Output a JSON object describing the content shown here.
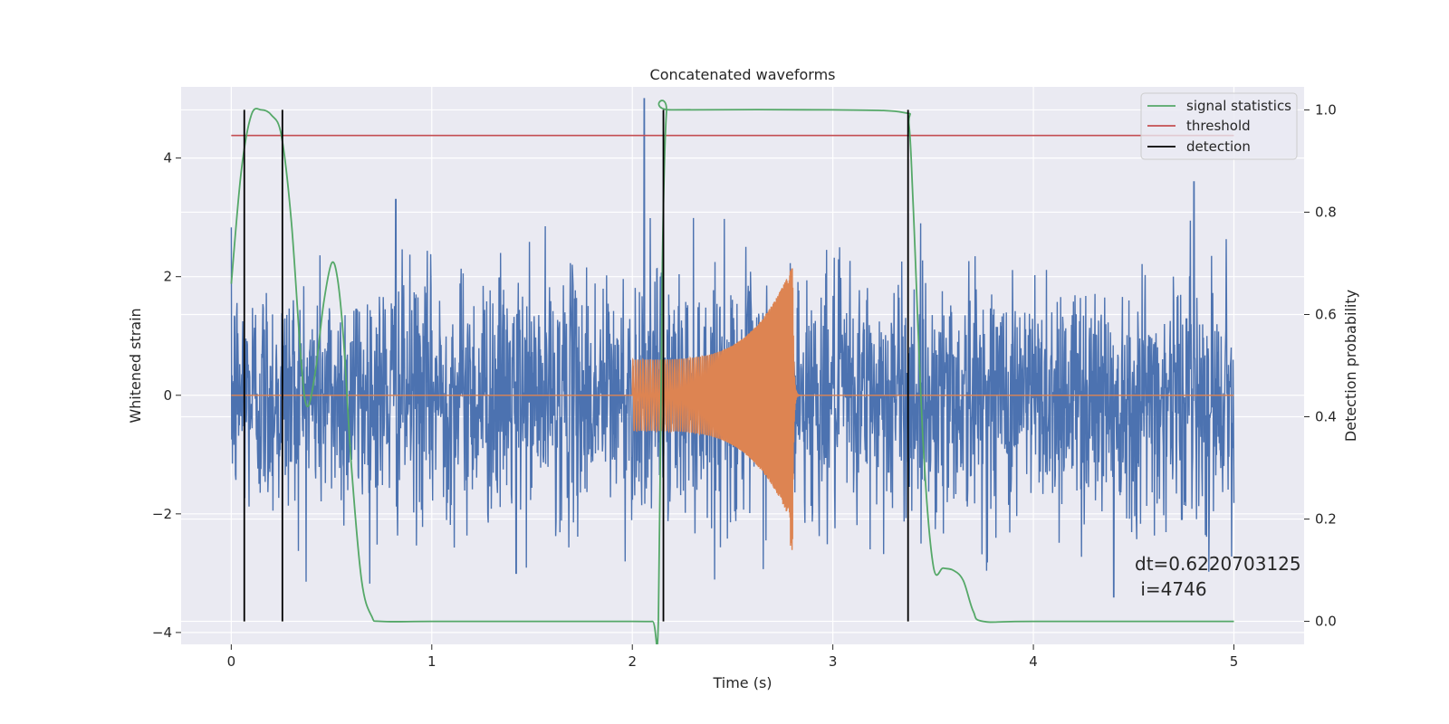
{
  "chart_data": {
    "type": "line",
    "title": "Concatenated waveforms",
    "xlabel": "Time (s)",
    "ylabel_left": "Whitened strain",
    "ylabel_right": "Detection probability",
    "xlim": [
      -0.25,
      5.35
    ],
    "ylim_left": [
      -4.2,
      5.2
    ],
    "ylim_right": [
      -0.045,
      1.045
    ],
    "x_ticks": [
      0,
      1,
      2,
      3,
      4,
      5
    ],
    "x_tick_labels": [
      "0",
      "1",
      "2",
      "3",
      "4",
      "5"
    ],
    "y_left_ticks": [
      -4,
      -2,
      0,
      2,
      4
    ],
    "y_left_tick_labels": [
      "−4",
      "−2",
      "0",
      "2",
      "4"
    ],
    "y_right_ticks": [
      0.0,
      0.2,
      0.4,
      0.6,
      0.8,
      1.0
    ],
    "y_right_tick_labels": [
      "0.0",
      "0.2",
      "0.4",
      "0.6",
      "0.8",
      "1.0"
    ],
    "grid": true,
    "legend_position": "top-right",
    "series": [
      {
        "name": "",
        "axis": "left",
        "kind": "noise",
        "color": "#4c72b0",
        "x_range": [
          0,
          5
        ],
        "typical_amplitude": 1.2,
        "peak_values": [
          {
            "x": 2.06,
            "y": 5.0
          },
          {
            "x": 0.82,
            "y": 3.3
          },
          {
            "x": 4.8,
            "y": 3.6
          },
          {
            "x": 4.4,
            "y": -3.4
          },
          {
            "x": 1.42,
            "y": -3.0
          }
        ]
      },
      {
        "name": "",
        "axis": "left",
        "kind": "chirp",
        "color": "#dd8452",
        "x_range": [
          0,
          5
        ],
        "chirp_start": 2.0,
        "chirp_merger": 2.8,
        "start_amplitude": 0.6,
        "peak_amplitude": 2.2,
        "min_peak_value": -2.7
      },
      {
        "name": "signal statistics",
        "axis": "right",
        "color": "#55a868",
        "x": [
          0,
          0.05,
          0.1,
          0.15,
          0.2,
          0.25,
          0.3,
          0.35,
          0.38,
          0.42,
          0.46,
          0.5,
          0.53,
          0.56,
          0.6,
          0.65,
          0.7,
          0.75,
          1.0,
          1.5,
          2.0,
          2.1,
          2.13,
          2.15,
          2.17,
          2.2,
          3.0,
          3.35,
          3.38,
          3.4,
          3.45,
          3.5,
          3.55,
          3.6,
          3.65,
          3.7,
          3.75,
          4.0,
          5.0
        ],
        "y": [
          0.66,
          0.88,
          0.99,
          1.0,
          0.99,
          0.95,
          0.78,
          0.5,
          0.42,
          0.49,
          0.62,
          0.7,
          0.67,
          0.55,
          0.3,
          0.08,
          0.01,
          0.0,
          0.0,
          0.0,
          0.0,
          0.0,
          0.003,
          0.7,
          0.995,
          1.0,
          1.0,
          0.995,
          0.97,
          0.82,
          0.35,
          0.11,
          0.104,
          0.1,
          0.08,
          0.02,
          0.0,
          0.0,
          0.0
        ]
      },
      {
        "name": "threshold",
        "axis": "right",
        "color": "#c44e52",
        "x": [
          0,
          5
        ],
        "y": [
          0.95,
          0.95
        ]
      },
      {
        "name": "detection",
        "axis": "right",
        "color": "#000000",
        "kind": "vlines",
        "x": [
          0.065,
          0.255,
          2.155,
          3.375
        ],
        "y_range": [
          0,
          1
        ]
      }
    ],
    "annotation": {
      "line1": "dt=0.6220703125",
      "line2": " i=4746"
    }
  }
}
